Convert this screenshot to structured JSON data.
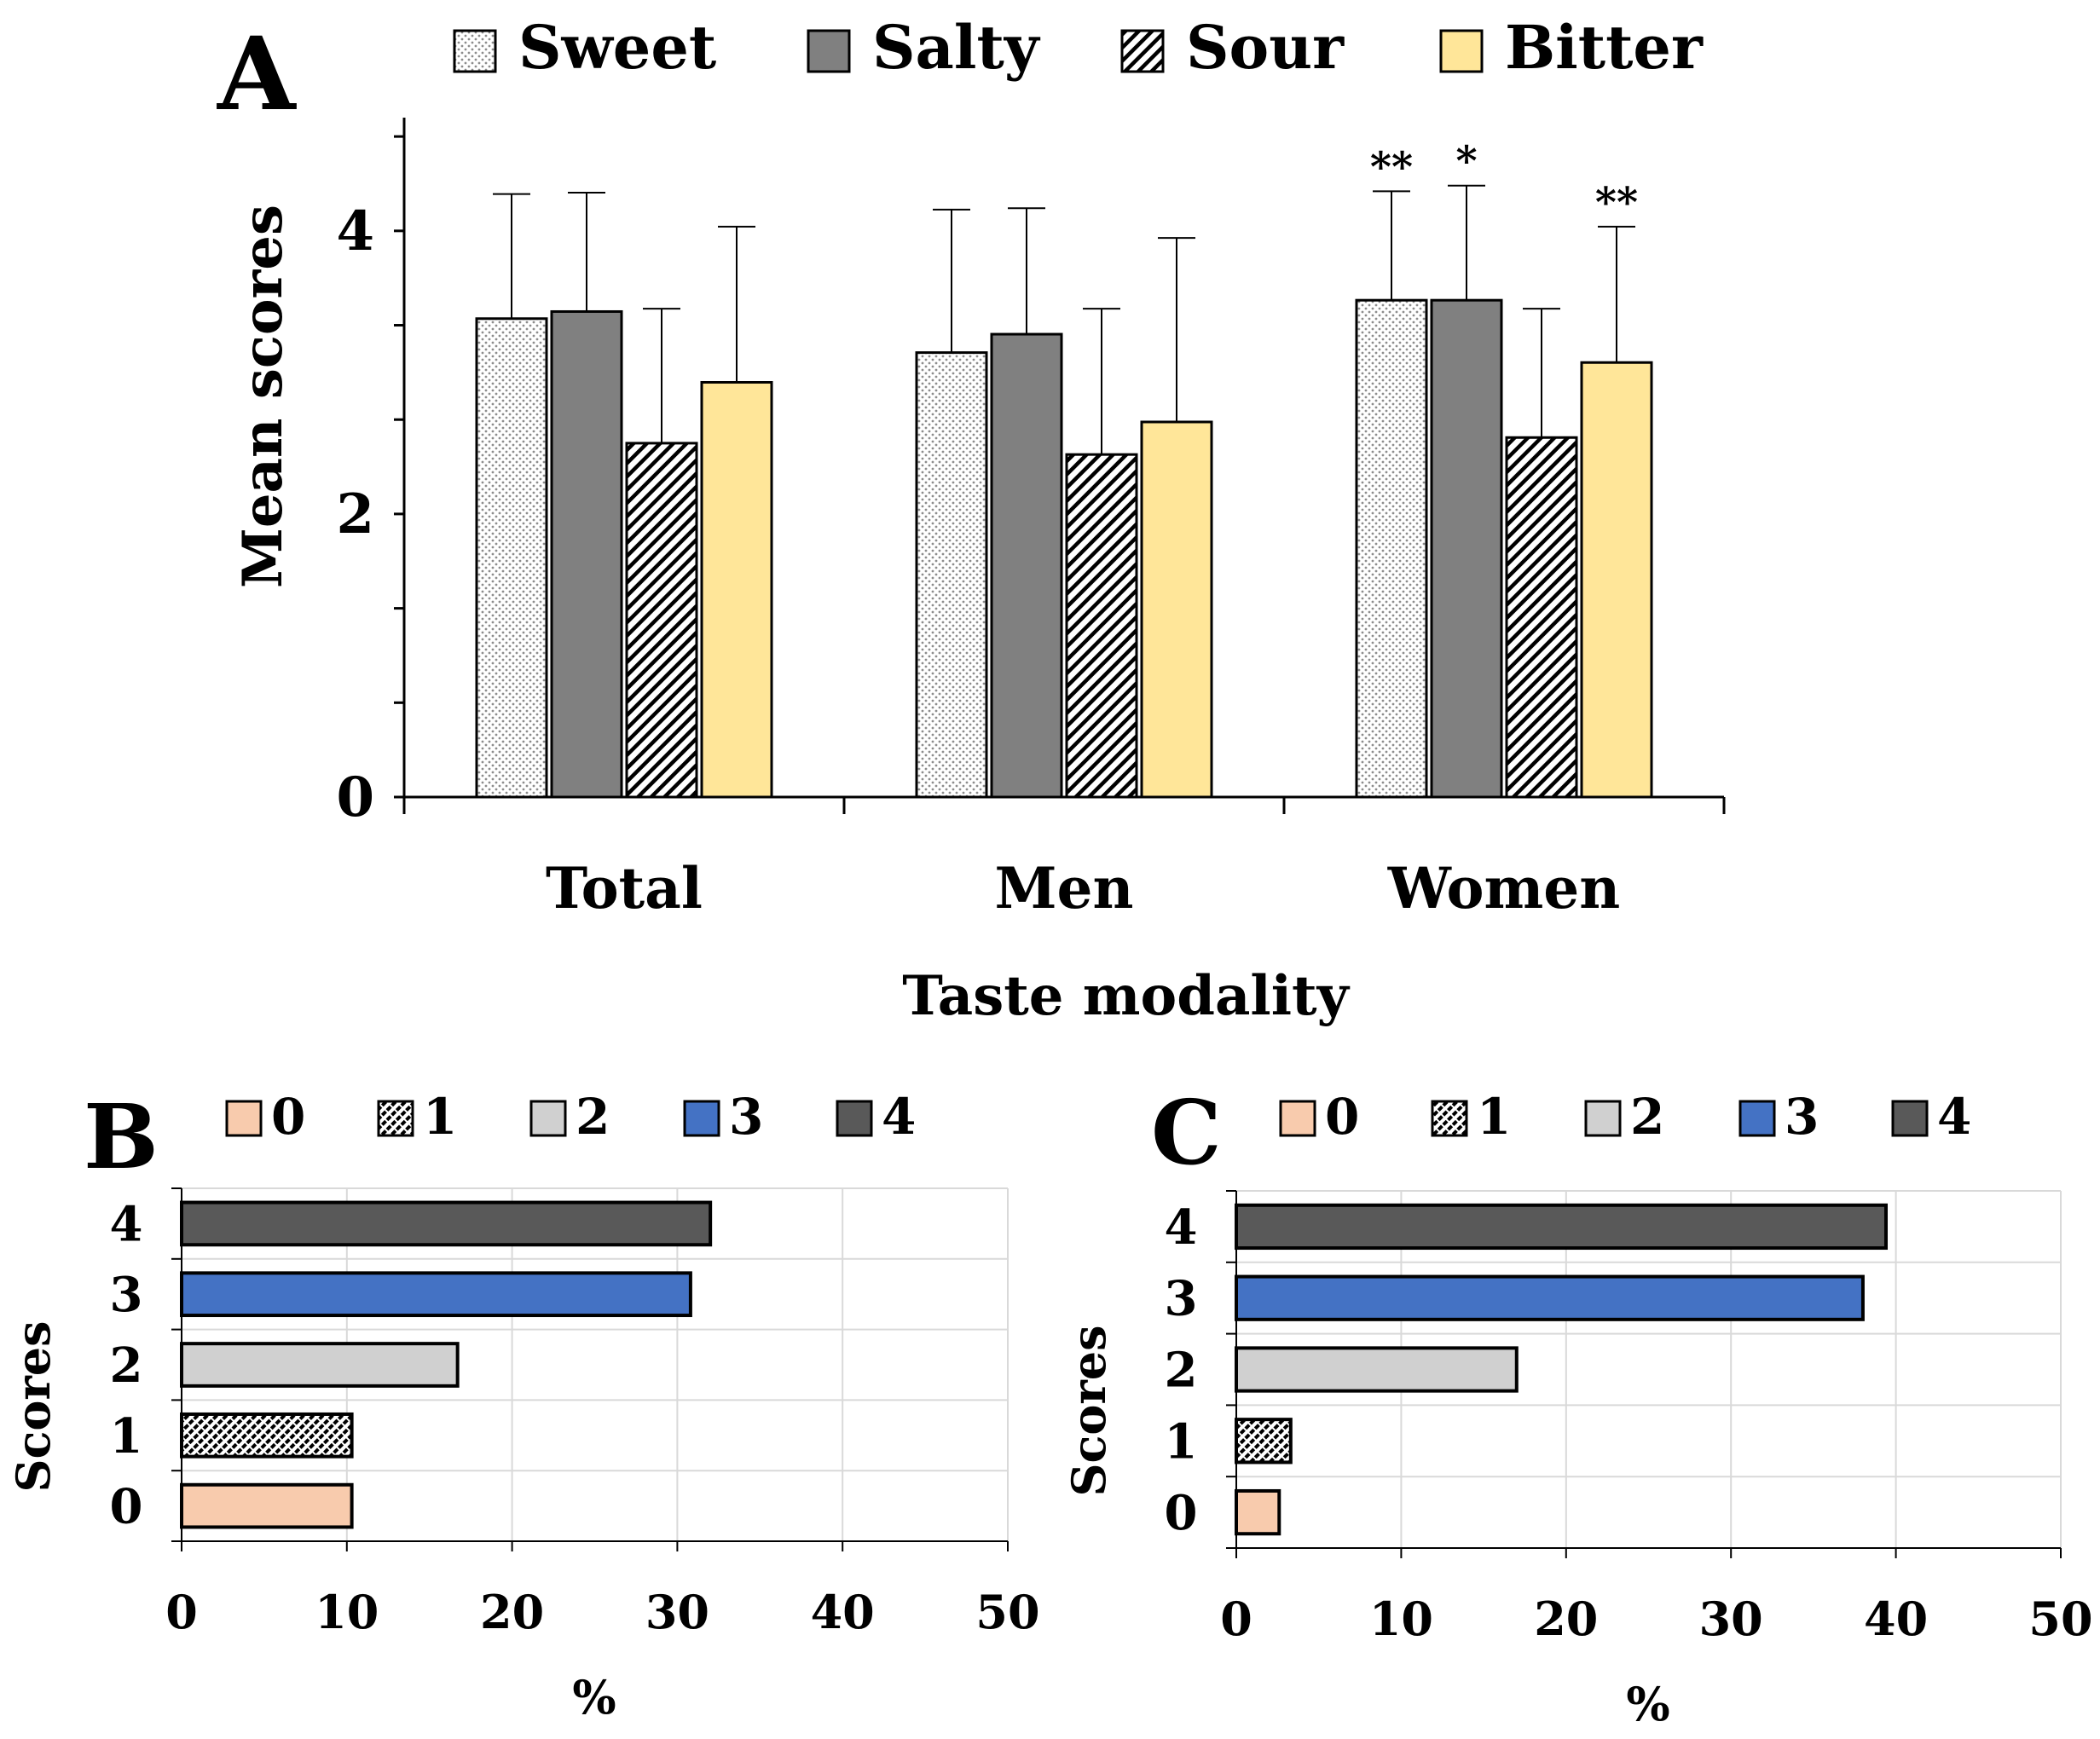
{
  "chart_data": [
    {
      "panel": "A",
      "type": "bar",
      "categories": [
        "Total",
        "Men",
        "Women"
      ],
      "series": [
        {
          "name": "Sweet",
          "values": [
            3.38,
            3.14,
            3.51
          ],
          "errors": [
            0.88,
            1.01,
            0.77
          ]
        },
        {
          "name": "Salty",
          "values": [
            3.43,
            3.27,
            3.51
          ],
          "errors": [
            0.84,
            0.89,
            0.81
          ]
        },
        {
          "name": "Sour",
          "values": [
            2.5,
            2.42,
            2.54
          ],
          "errors": [
            0.95,
            1.03,
            0.91
          ]
        },
        {
          "name": "Bitter",
          "values": [
            2.93,
            2.65,
            3.07
          ],
          "errors": [
            1.1,
            1.3,
            0.96
          ]
        }
      ],
      "annotations": [
        {
          "category": "Women",
          "series": "Sweet",
          "text": "**"
        },
        {
          "category": "Women",
          "series": "Salty",
          "text": "*"
        },
        {
          "category": "Women",
          "series": "Bitter",
          "text": "**"
        }
      ],
      "title": "",
      "xlabel": "Taste modality",
      "ylabel": "Mean scores",
      "ylim": [
        0,
        4.8
      ],
      "yticks": [
        "0",
        "2",
        "4"
      ],
      "grid": false
    },
    {
      "panel": "B",
      "type": "bar",
      "orientation": "horizontal",
      "categories": [
        "0",
        "1",
        "2",
        "3",
        "4"
      ],
      "values": [
        10.3,
        10.3,
        16.7,
        30.8,
        32.0
      ],
      "legend": [
        "0",
        "1",
        "2",
        "3",
        "4"
      ],
      "xlabel": "%",
      "ylabel": "Scores",
      "xlim": [
        0,
        50
      ],
      "xticks": [
        "0",
        "10",
        "20",
        "30",
        "40",
        "50"
      ],
      "grid": true
    },
    {
      "panel": "C",
      "type": "bar",
      "orientation": "horizontal",
      "categories": [
        "0",
        "1",
        "2",
        "3",
        "4"
      ],
      "values": [
        2.6,
        3.3,
        17.0,
        38.0,
        39.4
      ],
      "legend": [
        "0",
        "1",
        "2",
        "3",
        "4"
      ],
      "xlabel": "%",
      "ylabel": "Scores",
      "xlim": [
        0,
        50
      ],
      "xticks": [
        "0",
        "10",
        "20",
        "30",
        "40",
        "50"
      ],
      "grid": true
    }
  ],
  "colors": {
    "sweet": "#ffffff",
    "salty": "#808080",
    "sour": "#ffffff",
    "bitter": "#ffe699",
    "score0": "#f8cbad",
    "score1": "#ffffff",
    "score2": "#d0d0d0",
    "score3": "#4472c4",
    "score4": "#595959",
    "grid": "#d9d9d9"
  }
}
